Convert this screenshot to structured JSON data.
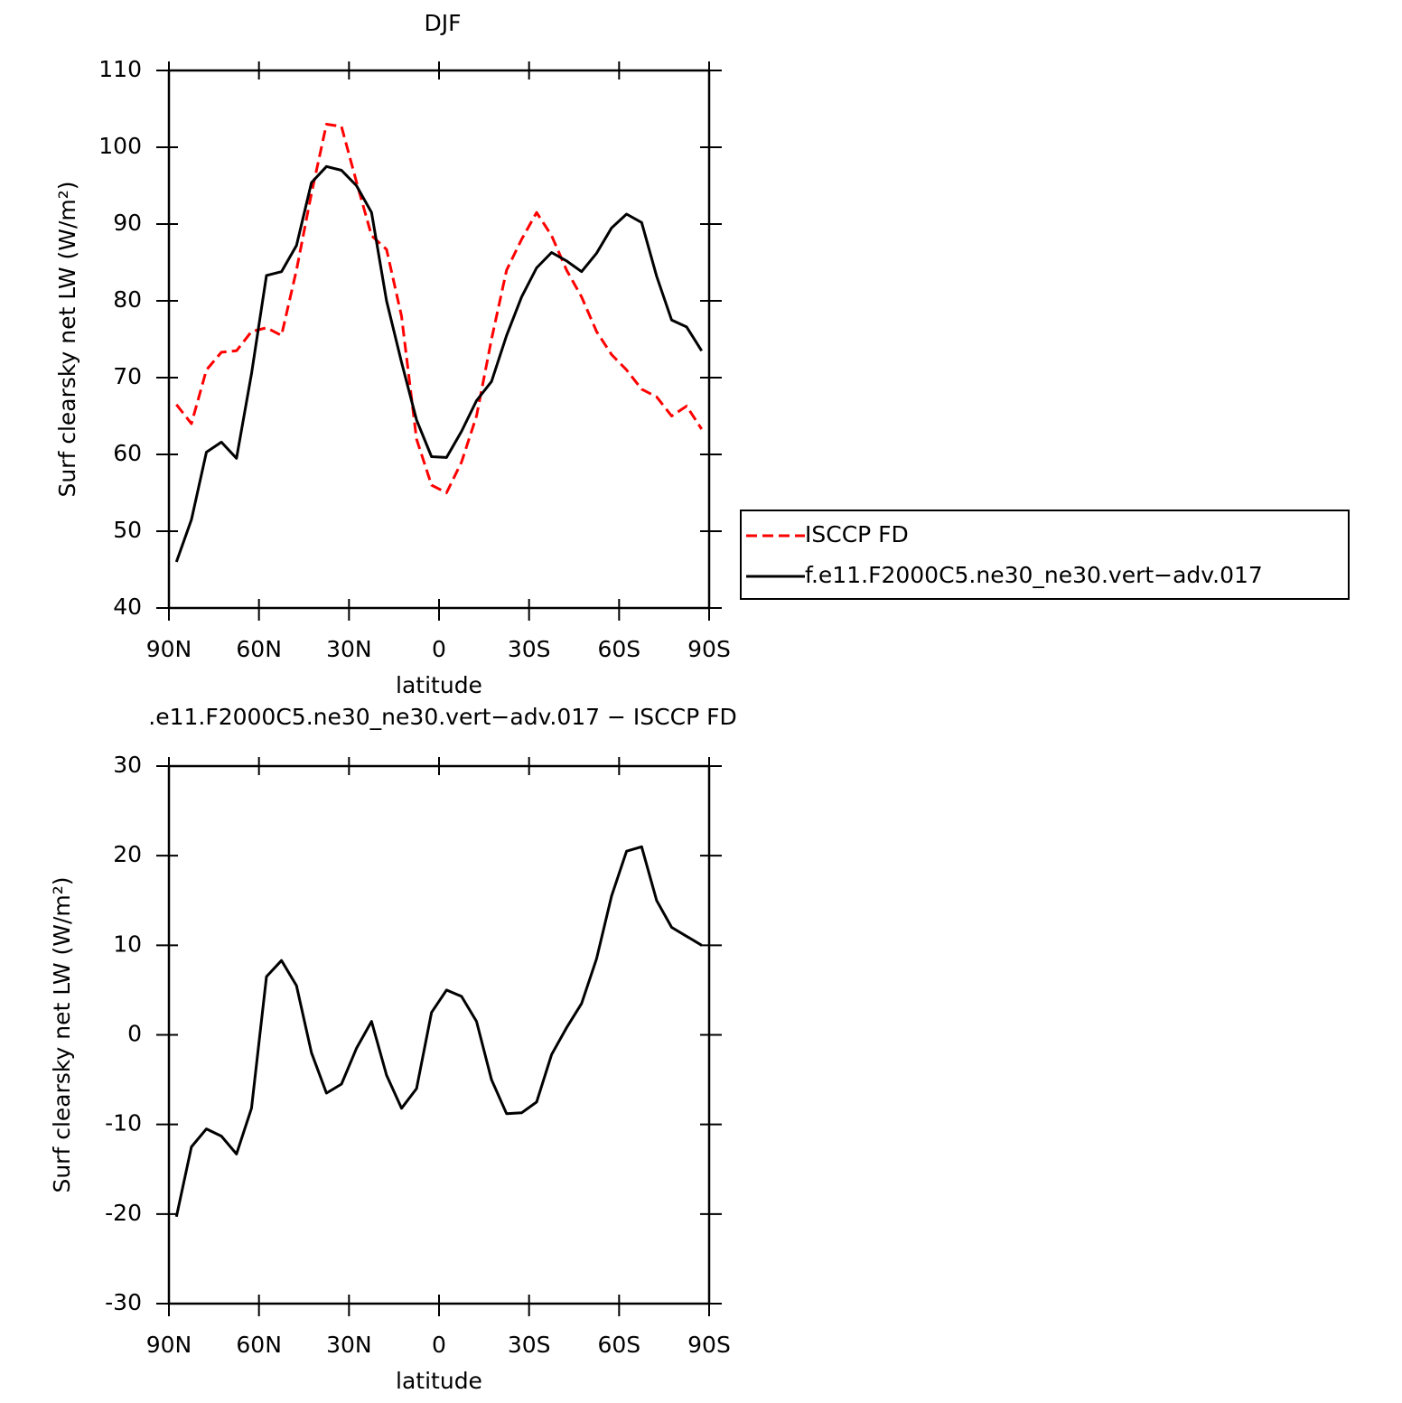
{
  "chart_data": [
    {
      "type": "line",
      "title": "DJF",
      "xlabel": "latitude",
      "ylabel": "Surf clearsky net LW (W/m²)",
      "x": [
        87.5,
        82.5,
        77.5,
        72.5,
        67.5,
        62.5,
        57.5,
        52.5,
        47.5,
        42.5,
        37.5,
        32.5,
        27.5,
        22.5,
        17.5,
        12.5,
        7.5,
        2.5,
        -2.5,
        -7.5,
        -12.5,
        -17.5,
        -22.5,
        -27.5,
        -32.5,
        -37.5,
        -42.5,
        -47.5,
        -52.5,
        -57.5,
        -62.5,
        -67.5,
        -72.5,
        -77.5,
        -82.5,
        -87.5
      ],
      "series": [
        {
          "name": "ISCCP FD",
          "color": "#ff0000",
          "dash": "dashed",
          "values": [
            66.5,
            64,
            71,
            73.3,
            73.5,
            76,
            76.5,
            75.5,
            84,
            94,
            103,
            102.7,
            95.5,
            88.5,
            86.7,
            78,
            62,
            56,
            55,
            59,
            65,
            75,
            84,
            88,
            91.5,
            88.5,
            84,
            80.5,
            76,
            73,
            71,
            68.5,
            67.5,
            65,
            66.3,
            63.3
          ]
        },
        {
          "name": "f.e11.F2000C5.ne30_ne30.vert−adv.017",
          "color": "#000000",
          "dash": "solid",
          "values": [
            46,
            51.5,
            60.3,
            61.6,
            59.5,
            70.5,
            83.3,
            83.8,
            87.2,
            95.4,
            97.5,
            97,
            95,
            91.5,
            80,
            72,
            64.5,
            59.7,
            59.6,
            63,
            67,
            69.5,
            75.5,
            80.5,
            84.3,
            86.3,
            85.2,
            83.8,
            86.2,
            89.5,
            91.3,
            90.2,
            83.2,
            77.5,
            76.6,
            73.5
          ]
        }
      ],
      "xlim": [
        90,
        -90
      ],
      "xticks": [
        {
          "value": 90,
          "label": "90N"
        },
        {
          "value": 60,
          "label": "60N"
        },
        {
          "value": 30,
          "label": "30N"
        },
        0,
        {
          "value": -30,
          "label": "30S"
        },
        {
          "value": -60,
          "label": "60S"
        },
        {
          "value": -90,
          "label": "90S"
        }
      ],
      "ylim": [
        40,
        110
      ],
      "yticks": [
        40,
        50,
        60,
        70,
        80,
        90,
        100,
        110
      ],
      "legend": "right"
    },
    {
      "type": "line",
      "title": ".e11.F2000C5.ne30_ne30.vert−adv.017 − ISCCP FD",
      "xlabel": "latitude",
      "ylabel": "Surf clearsky net LW (W/m²)",
      "x": [
        87.5,
        82.5,
        77.5,
        72.5,
        67.5,
        62.5,
        57.5,
        52.5,
        47.5,
        42.5,
        37.5,
        32.5,
        27.5,
        22.5,
        17.5,
        12.5,
        7.5,
        2.5,
        -2.5,
        -7.5,
        -12.5,
        -17.5,
        -22.5,
        -27.5,
        -32.5,
        -37.5,
        -42.5,
        -47.5,
        -52.5,
        -57.5,
        -62.5,
        -67.5,
        -72.5,
        -77.5,
        -82.5,
        -87.5
      ],
      "values": [
        -20.3,
        -12.5,
        -10.5,
        -11.3,
        -13.3,
        -8.2,
        6.5,
        8.3,
        5.5,
        -2,
        -6.5,
        -5.5,
        -1.5,
        1.5,
        -4.5,
        -8.2,
        -6,
        2.5,
        5,
        4.3,
        1.5,
        -5,
        -8.8,
        -8.7,
        -7.5,
        -2.2,
        0.8,
        3.5,
        8.5,
        15.5,
        20.5,
        21,
        15,
        12,
        11,
        10
      ],
      "color": "#000000",
      "xlim": [
        90,
        -90
      ],
      "xticks": [
        {
          "value": 90,
          "label": "90N"
        },
        {
          "value": 60,
          "label": "60N"
        },
        {
          "value": 30,
          "label": "30N"
        },
        0,
        {
          "value": -30,
          "label": "30S"
        },
        {
          "value": -60,
          "label": "60S"
        },
        {
          "value": -90,
          "label": "90S"
        }
      ],
      "ylim": [
        -30,
        30
      ],
      "yticks": [
        -30,
        -20,
        -10,
        0,
        10,
        20,
        30
      ]
    }
  ]
}
